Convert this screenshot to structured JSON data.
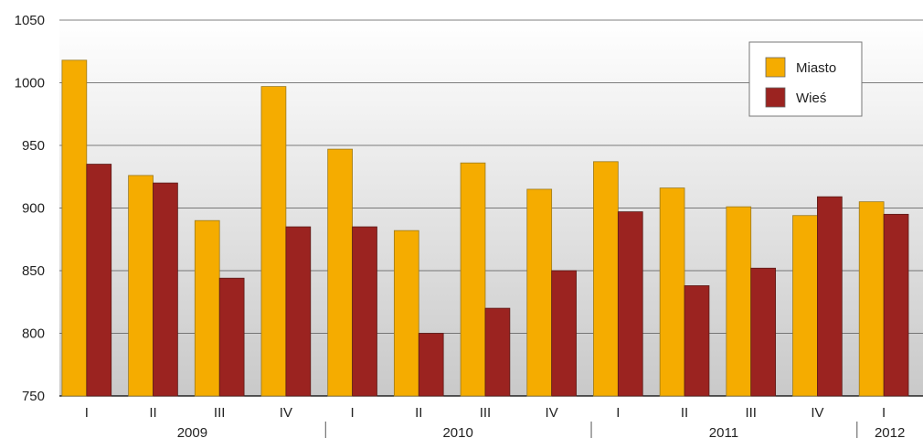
{
  "chart_data": {
    "type": "bar",
    "categories": [
      "I",
      "II",
      "III",
      "IV",
      "I",
      "II",
      "III",
      "IV",
      "I",
      "II",
      "III",
      "IV",
      "I"
    ],
    "groups": [
      {
        "label": "2009",
        "start": 0,
        "end": 3
      },
      {
        "label": "2010",
        "start": 4,
        "end": 7
      },
      {
        "label": "2011",
        "start": 8,
        "end": 11
      },
      {
        "label": "2012",
        "start": 12,
        "end": 12
      }
    ],
    "series": [
      {
        "name": "Miasto",
        "color": "#f5ac00",
        "values": [
          1018,
          926,
          890,
          997,
          947,
          882,
          936,
          915,
          937,
          916,
          901,
          894,
          905
        ]
      },
      {
        "name": "Wieś",
        "color": "#9b2320",
        "values": [
          935,
          920,
          844,
          885,
          885,
          800,
          820,
          850,
          897,
          838,
          852,
          909,
          895
        ]
      }
    ],
    "ylim": [
      750,
      1050
    ],
    "yticks": [
      "750",
      "800",
      "850",
      "900",
      "950",
      "1000",
      "1050"
    ],
    "grid": true,
    "legend_position": "top-right",
    "title": "",
    "xlabel": "",
    "ylabel": ""
  }
}
